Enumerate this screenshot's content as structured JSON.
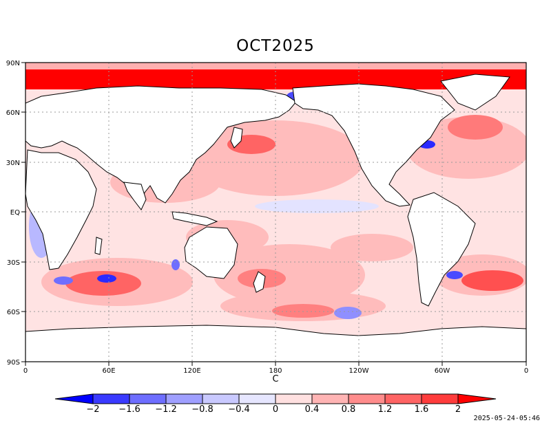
{
  "title": "OCT2025",
  "x_axis_label": "C",
  "timestamp": "2025-05-24-05:46",
  "lon_ticks": [
    "0",
    "60E",
    "120E",
    "180",
    "120W",
    "60W",
    "0"
  ],
  "lat_ticks": [
    "90N",
    "60N",
    "30N",
    "EQ",
    "30S",
    "60S",
    "90S"
  ],
  "colorbar": {
    "labels": [
      "-2",
      "-1.6",
      "-1.2",
      "-0.8",
      "-0.4",
      "0",
      "0.4",
      "0.8",
      "1.2",
      "1.6",
      "2"
    ],
    "colors": [
      "#0000ff",
      "#3a3aff",
      "#6e6eff",
      "#9f9fff",
      "#c9c9ff",
      "#e6e6ff",
      "#ffe0e0",
      "#ffb4b4",
      "#ff8c8c",
      "#ff6464",
      "#ff3c3c",
      "#ff0000"
    ]
  },
  "colors": {
    "land": "#ffffff",
    "coast": "#000000",
    "grid": "#9a9a9a"
  }
}
